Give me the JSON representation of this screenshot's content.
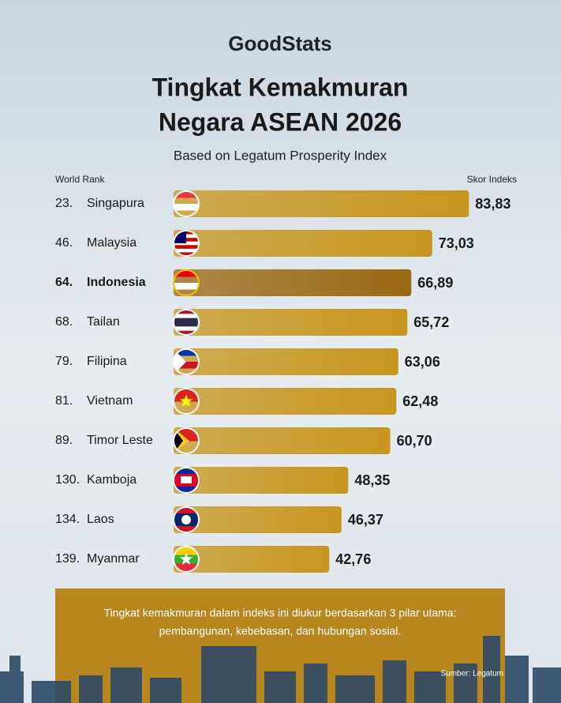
{
  "brand": "GoodStats",
  "chart_data": {
    "type": "bar",
    "title": [
      "Tingkat Kemakmuran",
      "Negara ASEAN 2026"
    ],
    "subtitle": "Based on Legatum Prosperity Index",
    "rank_label": "World Rank",
    "value_label": "Skor Indeks",
    "ranks": [
      "23.",
      "46.",
      "64.",
      "68.",
      "79.",
      "81.",
      "89.",
      "130.",
      "134.",
      "139."
    ],
    "categories": [
      "Singapura",
      "Malaysia",
      "Indonesia",
      "Tailan",
      "Filipina",
      "Vietnam",
      "Timor Leste",
      "Kamboja",
      "Laos",
      "Myanmar"
    ],
    "values": [
      83.83,
      73.03,
      66.89,
      65.72,
      63.06,
      62.48,
      60.7,
      48.35,
      46.37,
      42.76
    ],
    "value_labels": [
      "83,83",
      "73,03",
      "66,89",
      "65,72",
      "63,06",
      "62,48",
      "60,70",
      "48,35",
      "46,37",
      "42,76"
    ],
    "color": "#c8961f",
    "highlight": "Indonesia",
    "highlight_color": "#9a6814"
  },
  "note": [
    "Tingkat kemakmuran dalam indeks ini diukur berdasarkan 3 pilar utama:",
    "pembangunan, kebebasan, dan hubungan sosial."
  ],
  "source": "Sumber: Legatum"
}
